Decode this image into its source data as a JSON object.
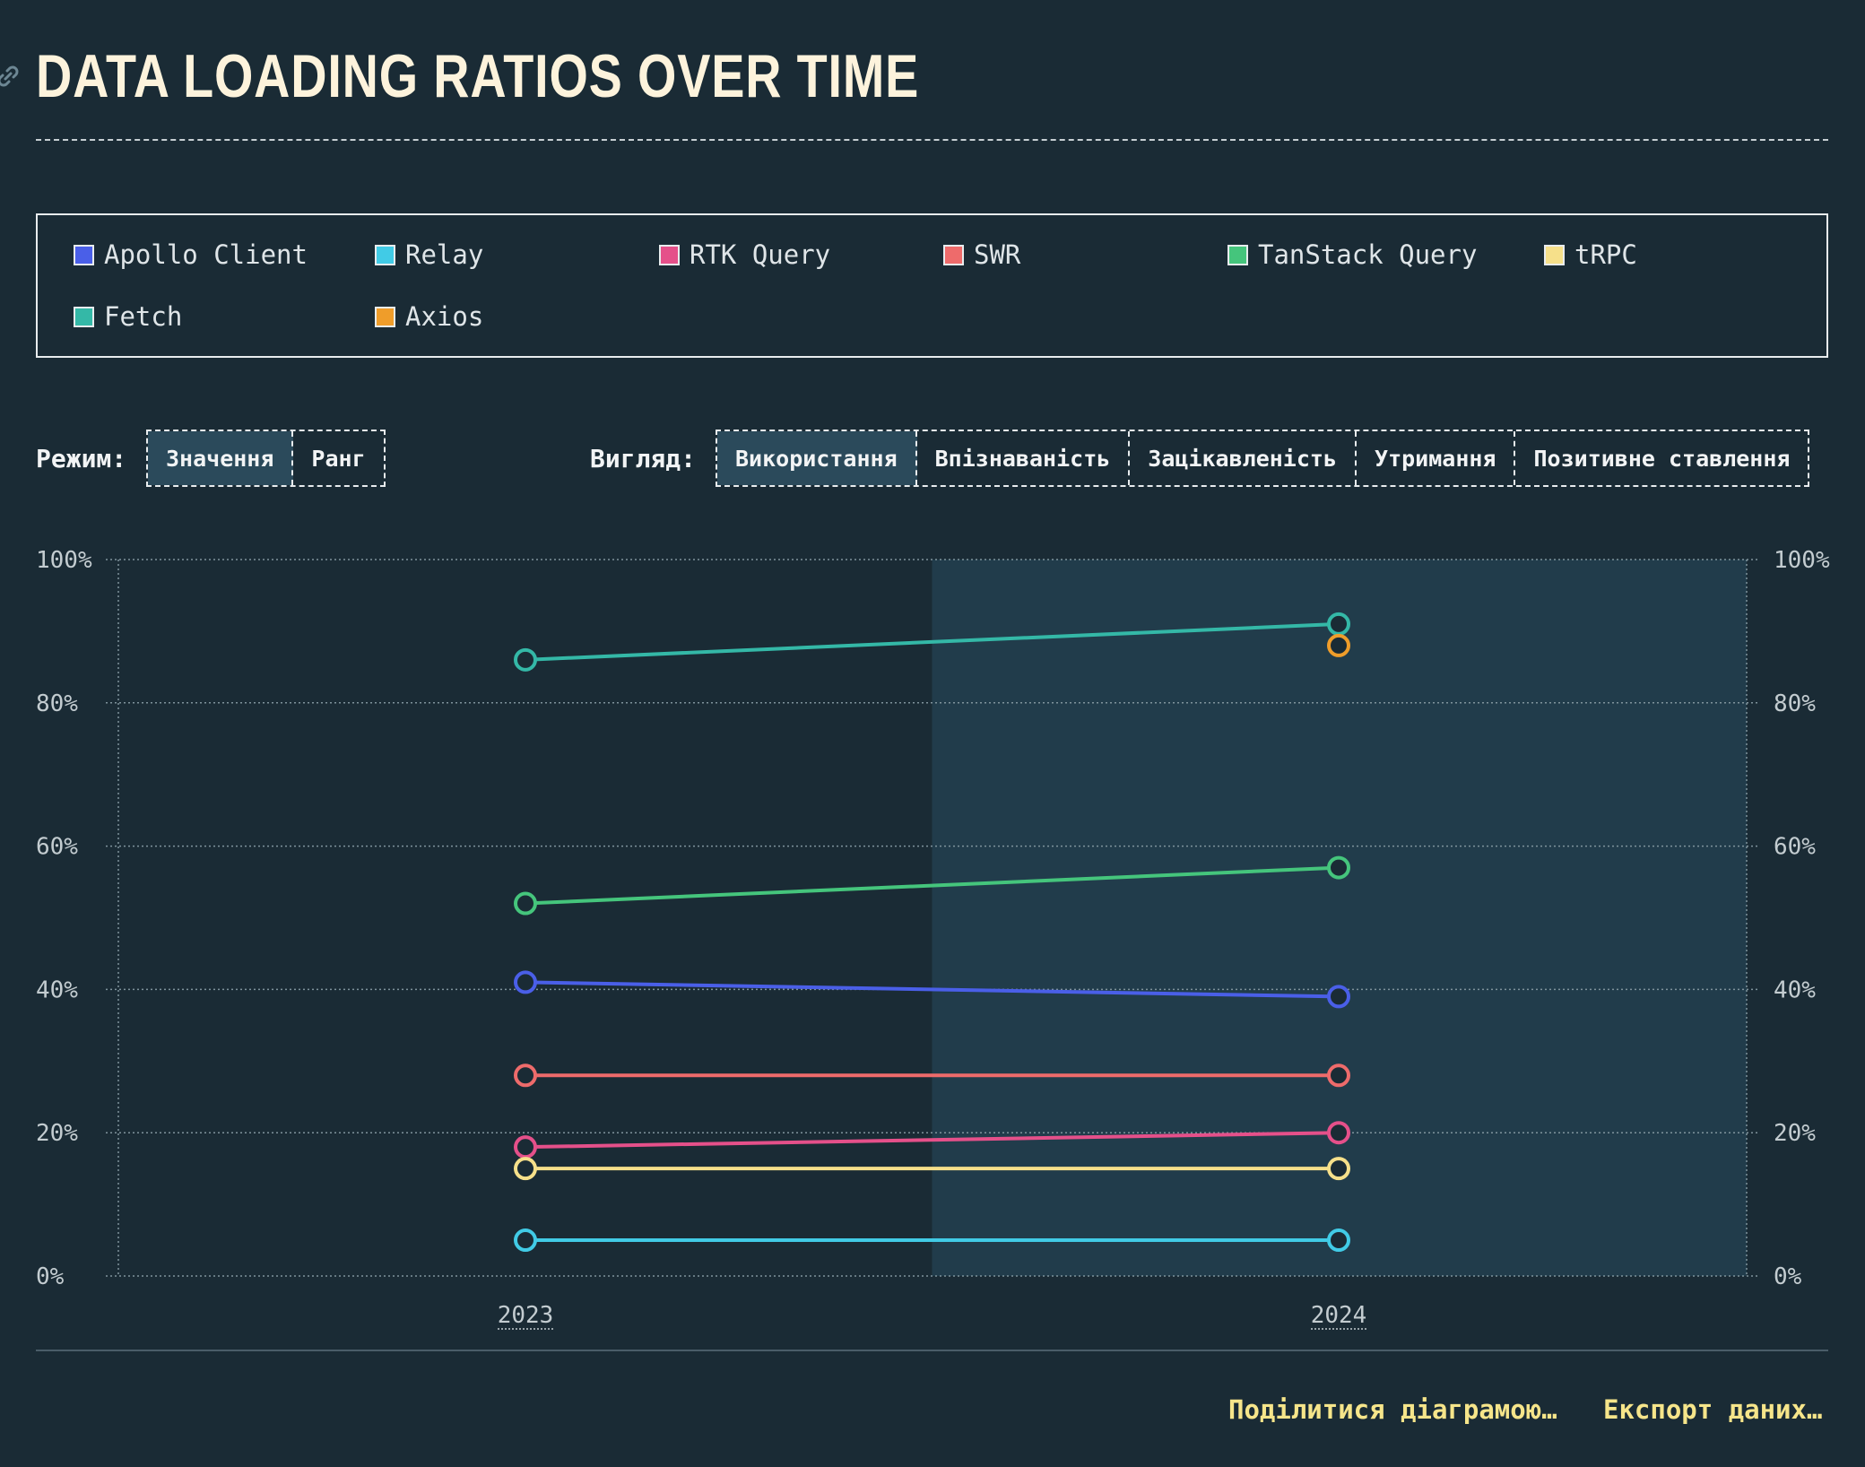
{
  "title": "DATA LOADING RATIOS OVER TIME",
  "legend": [
    {
      "label": "Apollo Client",
      "color": "#4a5fe8"
    },
    {
      "label": "Relay",
      "color": "#41cbe6"
    },
    {
      "label": "RTK Query",
      "color": "#e5508a"
    },
    {
      "label": "SWR",
      "color": "#ee6b6b"
    },
    {
      "label": "TanStack Query",
      "color": "#45c57c"
    },
    {
      "label": "tRPC",
      "color": "#f6e08a"
    },
    {
      "label": "Fetch",
      "color": "#34b8a7"
    },
    {
      "label": "Axios",
      "color": "#ef9d2a"
    }
  ],
  "controls": {
    "mode_label": "Режим:",
    "mode_options": [
      "Значення",
      "Ранг"
    ],
    "mode_selected": "Значення",
    "view_label": "Вигляд:",
    "view_options": [
      "Використання",
      "Впізнаваність",
      "Зацікавленість",
      "Утримання",
      "Позитивне ставлення"
    ],
    "view_selected": "Використання"
  },
  "footer": {
    "share_label": "Поділитися діаграмою…",
    "export_label": "Експорт даних…"
  },
  "chart_data": {
    "type": "line",
    "x": [
      "2023",
      "2024"
    ],
    "y_ticks": [
      "0%",
      "20%",
      "40%",
      "60%",
      "80%",
      "100%"
    ],
    "ylim": [
      0,
      100
    ],
    "highlighted_year": "2024",
    "grid": true,
    "series": [
      {
        "name": "Fetch",
        "color": "#34b8a7",
        "values": [
          86,
          91
        ]
      },
      {
        "name": "Axios",
        "color": "#ef9d2a",
        "values": [
          null,
          88
        ]
      },
      {
        "name": "TanStack Query",
        "color": "#45c57c",
        "values": [
          52,
          57
        ]
      },
      {
        "name": "Apollo Client",
        "color": "#4a5fe8",
        "values": [
          41,
          39
        ]
      },
      {
        "name": "SWR",
        "color": "#ee6b6b",
        "values": [
          28,
          28
        ]
      },
      {
        "name": "RTK Query",
        "color": "#e5508a",
        "values": [
          18,
          20
        ]
      },
      {
        "name": "tRPC",
        "color": "#f6e08a",
        "values": [
          15,
          15
        ]
      },
      {
        "name": "Relay",
        "color": "#41cbe6",
        "values": [
          5,
          5
        ]
      }
    ]
  }
}
